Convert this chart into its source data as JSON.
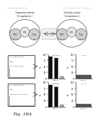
{
  "title": "18A",
  "bg_color": "#ffffff",
  "text_color": "#111111",
  "header_left": "Human Regulatory Immunology",
  "header_right": "Mayo  J. Immunol  Resp. 20 of 22   J.R. Immunobiol.10, 11",
  "top_left_label": "Suppressor activity\n(in superpress.)",
  "top_right_label": "Cytotoxic activity\n(in superpress.)",
  "row1_box_text1": "DC + IDO/IDO+DC",
  "row1_box_text2": "(Treg)",
  "row1_box_text3": "MHC+ MHC+ IDO+",
  "row2_box_text1": "DC + IDO/IDO+DC",
  "row2_box_text2": "(Treg)",
  "row2_box_text3": "Treg+ MHC+ IDO+ STF+",
  "bar1a_values": [
    90,
    85,
    10
  ],
  "bar1a_colors": [
    "#111111",
    "#111111",
    "#bbbbbb"
  ],
  "bar1b_values": [
    15
  ],
  "bar1b_colors": [
    "#555555"
  ],
  "bar2a_values": [
    88,
    80,
    8
  ],
  "bar2a_colors": [
    "#111111",
    "#111111",
    "#bbbbbb"
  ],
  "bar2b_values": [
    12
  ],
  "bar2b_colors": [
    "#555555"
  ],
  "ylim": [
    0,
    100
  ],
  "yticks": [
    0,
    25,
    50,
    75,
    100
  ],
  "legend1": [
    "Supressor",
    "p<0.05"
  ],
  "legend2": [
    "Cytotoxic",
    "p<0.01"
  ],
  "xticklabels1": [
    "MHC+/DC-",
    "IDO",
    "STF"
  ],
  "xticklabels2": [
    "MHC+/DC-",
    "IDO",
    "STF"
  ]
}
